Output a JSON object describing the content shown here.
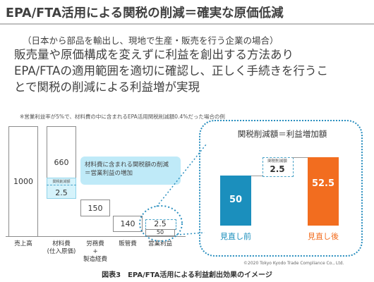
{
  "title": "EPA/FTA活用による関税の削減＝確実な原価低減",
  "subtitle": "（日本から部品を輸出し、現地で生産・販売を行う企業の場合）",
  "body_lines": [
    "販売量や原価構成を変えずに利益を創出する方法あり",
    "EPA/FTAの適用範囲を適切に確認し、正しく手続きを行うこ",
    "とで関税の削減による利益増が実現"
  ],
  "note": "※営業利益率が5%で、材料費の中に含まれるEPA活用関税削減額0.4%だった場合の例",
  "chart_data": [
    {
      "type": "bar",
      "categories": [
        "売上高",
        "材料費（仕入原価）",
        "労務費＋製造経費",
        "販管費",
        "営業利益"
      ],
      "values": [
        1000,
        660,
        150,
        140,
        50
      ],
      "category_labels": [
        [
          "売上高"
        ],
        [
          "材料費",
          "(仕入原価)"
        ],
        [
          "労務費",
          "+",
          "製造経費"
        ],
        [
          "販管費"
        ],
        [
          "営業利益"
        ]
      ],
      "value_labels": [
        "1000",
        "660",
        "150",
        "140",
        "50"
      ],
      "tariff_reduction": {
        "value": 2.5,
        "label": "2.5",
        "box_label": "関税削減額"
      },
      "profit_increase": {
        "value": 2.5,
        "label": "2.5"
      },
      "callout": [
        "材料費に含まれる関税額の削減",
        "＝営業利益の増加"
      ]
    },
    {
      "type": "bar",
      "title": "関税削減額＝利益増加額",
      "categories": [
        "見直し前",
        "見直し後"
      ],
      "values": [
        50,
        52.5
      ],
      "value_labels": [
        "50",
        "52.5"
      ],
      "increment": {
        "value": 2.5,
        "label": "2.5",
        "box_label": "関税削減額"
      },
      "colors": [
        "#1b8fbd",
        "#f26d1f"
      ]
    }
  ],
  "copyright": "©2020 Tokyo Kyodo Trade Compliance Co., Ltd.",
  "caption": "図表3　EPA/FTA活用による利益創出効果のイメージ"
}
